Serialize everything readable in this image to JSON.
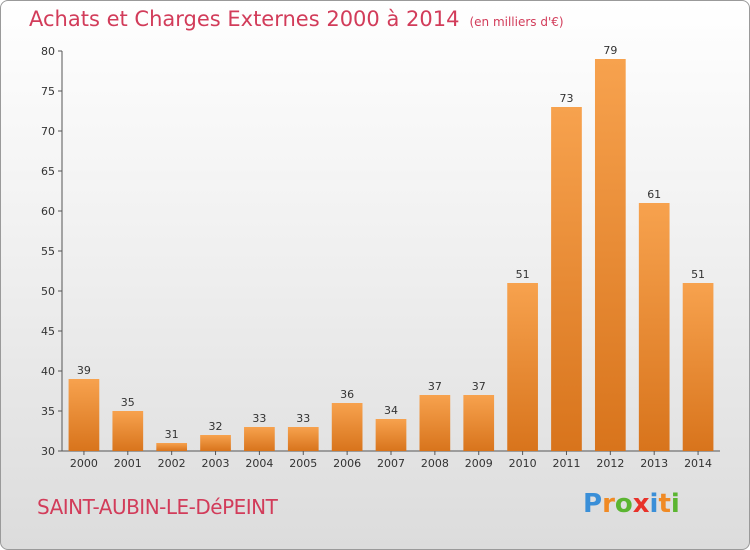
{
  "header": {
    "title": "Achats et Charges Externes 2000 à 2014",
    "subtitle": "(en milliers d'€)"
  },
  "footer": {
    "commune": "SAINT-AUBIN-LE-DéPEINT",
    "logo_letters": [
      "P",
      "r",
      "o",
      "x",
      "i",
      "t",
      "i"
    ],
    "logo_colors": [
      "#3a8fd8",
      "#f08a24",
      "#5bb531",
      "#e8322a",
      "#3a8fd8",
      "#f08a24",
      "#5bb531"
    ]
  },
  "colors": {
    "bar_top": "#f7a24e",
    "bar_bottom": "#d8741c",
    "title": "#d23c5a"
  },
  "chart_data": {
    "type": "bar",
    "title": "Achats et Charges Externes 2000 à 2014",
    "subtitle": "(en milliers d'€)",
    "categories": [
      "2000",
      "2001",
      "2002",
      "2003",
      "2004",
      "2005",
      "2006",
      "2007",
      "2008",
      "2009",
      "2010",
      "2011",
      "2012",
      "2013",
      "2014"
    ],
    "values": [
      39,
      35,
      31,
      32,
      33,
      33,
      36,
      34,
      37,
      37,
      51,
      73,
      79,
      61,
      51
    ],
    "ylim": [
      30,
      80
    ],
    "yticks": [
      30,
      35,
      40,
      45,
      50,
      55,
      60,
      65,
      70,
      75,
      80
    ],
    "grid": false,
    "legend": "none"
  }
}
